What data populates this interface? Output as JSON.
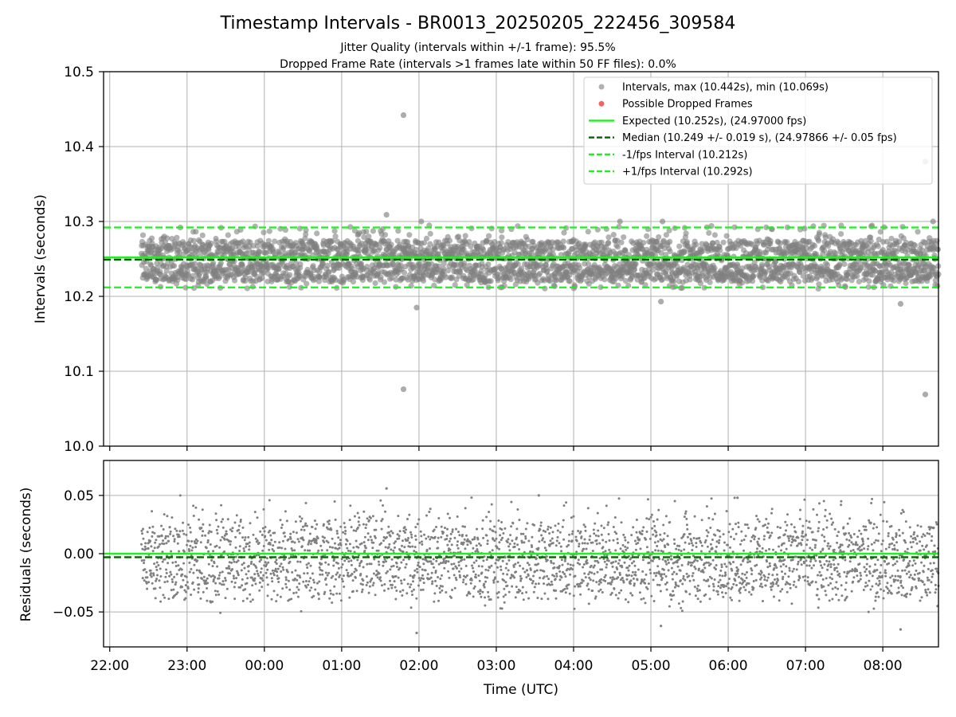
{
  "title": "Timestamp Intervals - BR0013_20250205_222456_309584",
  "subtitle_1": "Jitter Quality (intervals within +/-1 frame): 95.5%",
  "subtitle_2": "Dropped Frame Rate (intervals >1 frames late within 50 FF files): 0.0%",
  "colors": {
    "points": "#808080",
    "dropped": "#ef5350",
    "expected": "#22ee22",
    "median": "#006400",
    "band": "#22ee22",
    "grid": "#b0b0b0"
  },
  "chart_data": [
    {
      "type": "scatter",
      "name": "intervals",
      "ylabel": "Intervals (seconds)",
      "xlabel": "",
      "ylim": [
        10.0,
        10.5
      ],
      "yticks": [
        "10.0",
        "10.1",
        "10.2",
        "10.3",
        "10.4",
        "10.5"
      ],
      "xlim_hours": [
        21.92,
        32.72
      ],
      "grid": true,
      "legend_placement": "upper-right",
      "legend": [
        {
          "label": "Intervals, max (10.442s), min (10.069s)",
          "kind": "point",
          "color": "#a9a9a9"
        },
        {
          "label": "Possible Dropped Frames",
          "kind": "point",
          "color": "#ef5350"
        },
        {
          "label": "Expected (10.252s), (24.97000 fps)",
          "kind": "solid",
          "color": "#22ee22"
        },
        {
          "label": "Median (10.249 +/- 0.019 s), (24.97866 +/- 0.05 fps)",
          "kind": "dashed",
          "color": "#006400"
        },
        {
          "label": "-1/fps Interval (10.212s)",
          "kind": "dashed",
          "color": "#22ee22"
        },
        {
          "label": "+1/fps Interval (10.292s)",
          "kind": "dashed",
          "color": "#22ee22"
        }
      ],
      "lines": {
        "expected": 10.252,
        "median": 10.249,
        "minus_one_fps": 10.212,
        "plus_one_fps": 10.292
      },
      "series": {
        "name": "Intervals, max (10.442s), min (10.069s)",
        "n_points": 3000,
        "x_start_hours": 22.41,
        "x_end_hours": 32.72,
        "dense_range": [
          10.21,
          10.29
        ],
        "outliers": [
          {
            "t": 25.8,
            "v": 10.442
          },
          {
            "t": 25.8,
            "v": 10.076
          },
          {
            "t": 25.58,
            "v": 10.309
          },
          {
            "t": 25.97,
            "v": 10.185
          },
          {
            "t": 32.55,
            "v": 10.38
          },
          {
            "t": 32.55,
            "v": 10.069
          },
          {
            "t": 32.23,
            "v": 10.19
          },
          {
            "t": 29.13,
            "v": 10.193
          },
          {
            "t": 26.03,
            "v": 10.3
          },
          {
            "t": 28.6,
            "v": 10.3
          },
          {
            "t": 29.15,
            "v": 10.3
          },
          {
            "t": 32.65,
            "v": 10.3
          }
        ]
      }
    },
    {
      "type": "scatter",
      "name": "residuals",
      "ylabel": "Residuals (seconds)",
      "xlabel": "Time (UTC)",
      "ylim": [
        -0.08,
        0.08
      ],
      "yticks": [
        {
          "value": 0.05,
          "label": "0.05"
        },
        {
          "value": 0.0,
          "label": "0.00"
        },
        {
          "value": -0.05,
          "label": "−0.05"
        }
      ],
      "xticks": [
        {
          "hours": 22,
          "label": "22:00"
        },
        {
          "hours": 23,
          "label": "23:00"
        },
        {
          "hours": 24,
          "label": "00:00"
        },
        {
          "hours": 25,
          "label": "01:00"
        },
        {
          "hours": 26,
          "label": "02:00"
        },
        {
          "hours": 27,
          "label": "03:00"
        },
        {
          "hours": 28,
          "label": "04:00"
        },
        {
          "hours": 29,
          "label": "05:00"
        },
        {
          "hours": 30,
          "label": "06:00"
        },
        {
          "hours": 31,
          "label": "07:00"
        },
        {
          "hours": 32,
          "label": "08:00"
        }
      ],
      "lines": {
        "expected": 0.0,
        "median": -0.003
      },
      "series": {
        "name": "residuals",
        "range": [
          -0.068,
          0.056
        ],
        "outliers": [
          {
            "t": 25.58,
            "v": 0.056
          },
          {
            "t": 25.97,
            "v": -0.068
          },
          {
            "t": 32.23,
            "v": -0.065
          },
          {
            "t": 29.13,
            "v": -0.062
          },
          {
            "t": 27.55,
            "v": 0.05
          },
          {
            "t": 30.12,
            "v": 0.048
          }
        ]
      }
    }
  ]
}
